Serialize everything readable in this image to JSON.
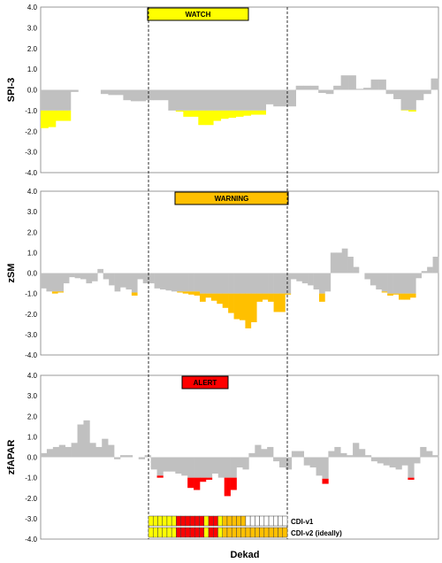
{
  "chart_data": [
    {
      "type": "bar",
      "name": "spi3",
      "ylabel": "SPI-3",
      "ylim": [
        -4.0,
        4.0
      ],
      "yticks": [
        "4.0",
        "3.0",
        "2.0",
        "1.0",
        "0.0",
        "-1.0",
        "-2.0",
        "-3.0",
        "-4.0"
      ],
      "grid": false,
      "badge": "WATCH",
      "colors": {
        "normal": "#c0c0c0",
        "flag": "#ffff00",
        "badge": "#ffff00"
      },
      "values": [
        -1.85,
        -1.8,
        -1.5,
        -1.5,
        -0.1,
        0.0,
        0.0,
        0.0,
        -0.2,
        -0.25,
        -0.25,
        -0.5,
        -0.55,
        -0.55,
        -0.5,
        -0.5,
        -0.5,
        -1.0,
        -1.05,
        -1.3,
        -1.3,
        -1.7,
        -1.7,
        -1.5,
        -1.4,
        -1.35,
        -1.3,
        -1.25,
        -1.2,
        -1.2,
        -0.7,
        -0.8,
        -0.8,
        -0.8,
        0.2,
        0.2,
        0.2,
        -0.15,
        -0.2,
        0.2,
        0.7,
        0.7,
        0.05,
        0.1,
        0.5,
        0.5,
        -0.2,
        -0.45,
        -1.0,
        -1.05,
        -0.5,
        -0.2,
        0.55
      ],
      "thresholds": [
        -1.0,
        -1.0,
        -1.0,
        -1.0,
        -1.0,
        -1.0,
        -1.0,
        -1.0,
        -1.0,
        -1.0,
        -1.0,
        -1.0,
        -1.0,
        -1.0,
        -1.0,
        -1.0,
        -1.0,
        -1.0,
        -1.0,
        -1.0,
        -1.0,
        -1.0,
        -1.0,
        -1.0,
        -1.0,
        -1.0,
        -1.0,
        -1.0,
        -1.0,
        -1.0,
        -1.0,
        -1.0,
        -1.0,
        -1.0,
        -1.0,
        -1.0,
        -1.0,
        -1.0,
        -1.0,
        -1.0,
        -1.0,
        -1.0,
        -1.0,
        -1.0,
        -1.0,
        -1.0,
        -1.0,
        -1.0,
        -0.98,
        -0.98,
        -1.0,
        -1.0,
        -1.0
      ]
    },
    {
      "type": "bar",
      "name": "zsm",
      "ylabel": "zSM",
      "ylim": [
        -4.0,
        4.0
      ],
      "yticks": [
        "4.0",
        "3.0",
        "2.0",
        "1.0",
        "0.0",
        "-1.0",
        "-2.0",
        "-3.0",
        "-4.0"
      ],
      "grid": false,
      "badge": "WARNING",
      "colors": {
        "normal": "#c0c0c0",
        "flag": "#ffc000",
        "badge": "#ffc000"
      },
      "values": [
        -0.75,
        -0.9,
        -1.0,
        -0.95,
        -0.5,
        -0.2,
        -0.25,
        -0.3,
        -0.5,
        -0.4,
        0.2,
        -0.3,
        -0.6,
        -0.9,
        -0.7,
        -0.8,
        -1.1,
        -0.3,
        -0.5,
        -0.5,
        -0.75,
        -0.8,
        -0.85,
        -0.9,
        -0.95,
        -1.0,
        -1.05,
        -1.1,
        -1.4,
        -1.2,
        -1.35,
        -1.5,
        -1.7,
        -1.95,
        -2.25,
        -2.3,
        -2.7,
        -2.4,
        -1.4,
        -1.3,
        -1.4,
        -1.9,
        -1.9,
        -1.05,
        -0.3,
        -0.4,
        -0.5,
        -0.6,
        -0.8,
        -1.4,
        -0.9,
        1.0,
        1.0,
        1.2,
        0.8,
        0.3,
        0.0,
        -0.3,
        -0.6,
        -0.8,
        -0.95,
        -1.1,
        -1.05,
        -1.3,
        -1.3,
        -1.2,
        -0.25,
        0.1,
        0.3,
        0.8
      ],
      "thresholds": [
        -0.9,
        -0.9,
        -0.9,
        -0.9,
        -0.9,
        -0.9,
        -0.9,
        -0.9,
        -0.9,
        -0.9,
        -0.9,
        -0.9,
        -0.9,
        -0.9,
        -0.9,
        -0.9,
        -0.95,
        -0.9,
        -0.9,
        -0.9,
        -0.9,
        -0.9,
        -0.9,
        -0.9,
        -0.9,
        -0.9,
        -0.9,
        -0.9,
        -1.0,
        -1.0,
        -1.0,
        -1.0,
        -1.0,
        -1.0,
        -1.0,
        -1.0,
        -1.0,
        -1.0,
        -1.0,
        -1.0,
        -1.0,
        -1.0,
        -1.0,
        -1.0,
        -0.9,
        -0.9,
        -0.9,
        -0.9,
        -0.9,
        -1.0,
        -0.9,
        -0.9,
        -0.9,
        -0.9,
        -0.9,
        -0.9,
        -0.9,
        -0.9,
        -0.9,
        -0.9,
        -0.9,
        -1.0,
        -1.0,
        -1.0,
        -1.0,
        -1.0,
        -0.9,
        -0.9,
        -0.9,
        -0.9
      ]
    },
    {
      "type": "bar",
      "name": "zfapar",
      "ylabel": "zfAPAR",
      "ylim": [
        -4.0,
        4.0
      ],
      "yticks": [
        "4.0",
        "3.0",
        "2.0",
        "1.0",
        "0.0",
        "-1.0",
        "-2.0",
        "-3.0",
        "-4.0"
      ],
      "grid": false,
      "badge": "ALERT",
      "colors": {
        "normal": "#c0c0c0",
        "flag": "#ff0000",
        "badge": "#ff0000"
      },
      "values": [
        0.2,
        0.4,
        0.5,
        0.6,
        0.5,
        0.7,
        1.6,
        1.8,
        0.7,
        0.5,
        0.9,
        0.6,
        -0.1,
        0.1,
        0.1,
        0.0,
        -0.1,
        0.1,
        -0.6,
        -1.0,
        -0.7,
        -0.7,
        -0.8,
        -0.9,
        -1.5,
        -1.6,
        -1.2,
        -1.1,
        -0.8,
        -1.0,
        -1.9,
        -1.6,
        -0.5,
        -0.6,
        0.2,
        0.6,
        0.4,
        0.5,
        -0.2,
        -0.5,
        -0.6,
        0.3,
        0.3,
        -0.4,
        -0.5,
        -0.9,
        -1.3,
        0.3,
        0.5,
        0.2,
        0.1,
        0.7,
        0.4,
        0.1,
        -0.2,
        -0.3,
        -0.4,
        -0.5,
        -0.6,
        -0.4,
        -1.1,
        -0.3,
        0.5,
        0.3,
        0.1
      ],
      "thresholds": [
        -1.0,
        -1.0,
        -1.0,
        -1.0,
        -1.0,
        -1.0,
        -1.0,
        -1.0,
        -1.0,
        -1.0,
        -1.0,
        -1.0,
        -1.0,
        -1.0,
        -1.0,
        -1.0,
        -1.0,
        -1.0,
        -1.0,
        -0.9,
        -1.0,
        -1.0,
        -1.0,
        -1.0,
        -1.0,
        -1.0,
        -1.0,
        -1.0,
        -1.0,
        -1.0,
        -1.0,
        -1.0,
        -1.0,
        -1.0,
        -1.0,
        -1.0,
        -1.0,
        -1.0,
        -1.0,
        -1.0,
        -1.0,
        -1.0,
        -1.0,
        -1.0,
        -1.0,
        -1.0,
        -1.05,
        -1.0,
        -1.0,
        -1.0,
        -1.0,
        -1.0,
        -1.0,
        -1.0,
        -1.0,
        -1.0,
        -1.0,
        -1.0,
        -1.0,
        -1.0,
        -1.0,
        -1.0,
        -1.0,
        -1.0,
        -1.0
      ]
    }
  ],
  "xlabel": "Dekad",
  "cdi": {
    "rows": [
      {
        "label": "CDI-v1",
        "cells": [
          "y",
          "y",
          "y",
          "y",
          "y",
          "y",
          "r",
          "r",
          "r",
          "r",
          "r",
          "r",
          "y",
          "r",
          "r",
          "y",
          "o",
          "o",
          "o",
          "o",
          "o",
          "w",
          "w",
          "w",
          "w",
          "w",
          "w",
          "w",
          "w",
          "w"
        ]
      },
      {
        "label": "CDI-v2 (ideally)",
        "cells": [
          "y",
          "y",
          "y",
          "y",
          "y",
          "y",
          "r",
          "r",
          "r",
          "r",
          "r",
          "r",
          "y",
          "r",
          "r",
          "y",
          "o",
          "o",
          "o",
          "o",
          "o",
          "o",
          "o",
          "o",
          "o",
          "o",
          "o",
          "o",
          "o",
          "o"
        ]
      }
    ],
    "colors": {
      "y": "#ffff00",
      "r": "#ff0000",
      "o": "#ffc000",
      "w": "#ffffff"
    }
  }
}
